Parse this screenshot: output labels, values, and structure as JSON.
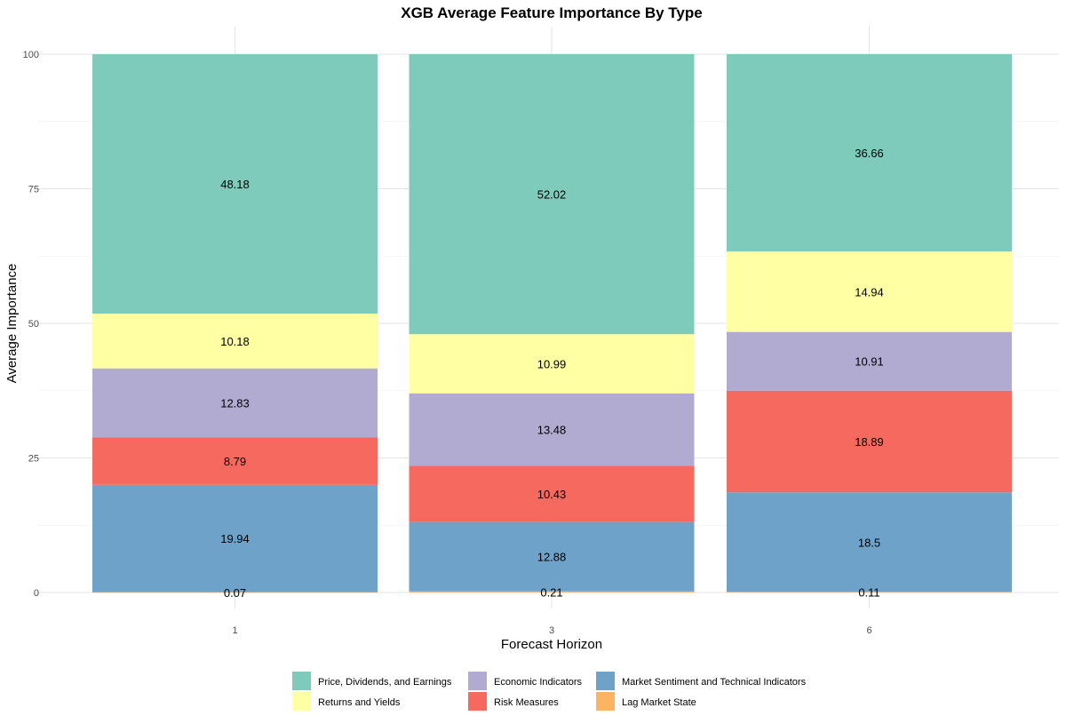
{
  "chart_data": {
    "type": "bar",
    "stacked": true,
    "title": "XGB Average Feature Importance By Type",
    "xlabel": "Forecast Horizon",
    "ylabel": "Average Importance",
    "categories": [
      "1",
      "3",
      "6"
    ],
    "ylim": [
      0,
      100
    ],
    "yticks": [
      0,
      25,
      50,
      75,
      100
    ],
    "grid": true,
    "legend_position": "bottom",
    "series": [
      {
        "name": "Lag Market State",
        "color": "#fdb462",
        "values": [
          0.07,
          0.21,
          0.11
        ],
        "labels": [
          "0.07",
          "0.21",
          "0.11"
        ]
      },
      {
        "name": "Market Sentiment and Technical Indicators",
        "color": "#6ea2c9",
        "values": [
          19.94,
          12.88,
          18.5
        ],
        "labels": [
          "19.94",
          "12.88",
          "18.5"
        ]
      },
      {
        "name": "Risk Measures",
        "color": "#f6695f",
        "values": [
          8.79,
          10.43,
          18.89
        ],
        "labels": [
          "8.79",
          "10.43",
          "18.89"
        ]
      },
      {
        "name": "Economic Indicators",
        "color": "#b1abd1",
        "values": [
          12.83,
          13.48,
          10.91
        ],
        "labels": [
          "12.83",
          "13.48",
          "10.91"
        ]
      },
      {
        "name": "Returns and Yields",
        "color": "#ffffa3",
        "values": [
          10.18,
          10.99,
          14.94
        ],
        "labels": [
          "10.18",
          "10.99",
          "14.94"
        ]
      },
      {
        "name": "Price, Dividends, and Earnings",
        "color": "#7ecbbb",
        "values": [
          48.18,
          52.02,
          36.66
        ],
        "labels": [
          "48.18",
          "52.02",
          "36.66"
        ]
      }
    ],
    "legend_order": [
      "Price, Dividends, and Earnings",
      "Returns and Yields",
      "Economic Indicators",
      "Risk Measures",
      "Market Sentiment and Technical Indicators",
      "Lag Market State"
    ]
  }
}
